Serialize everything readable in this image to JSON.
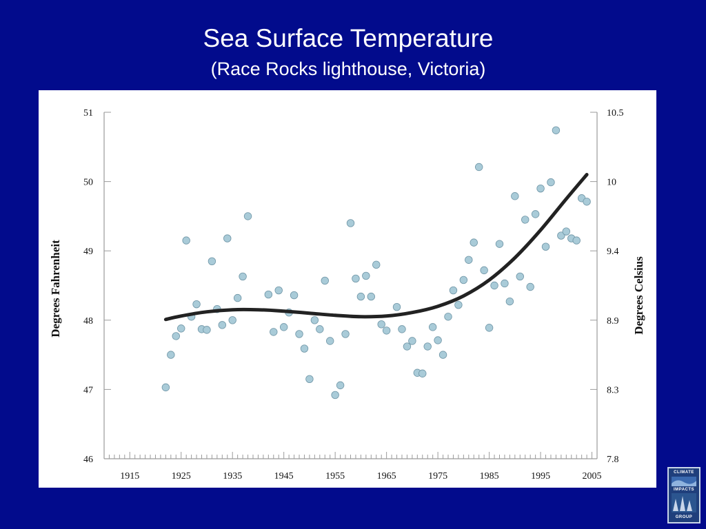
{
  "slide": {
    "title": "Sea Surface Temperature",
    "subtitle": "(Race Rocks lighthouse, Victoria)",
    "background": "#020b8c"
  },
  "logo": {
    "line1": "CLIMATE",
    "line2": "IMPACTS",
    "line3": "GROUP"
  },
  "chart_data": {
    "type": "scatter",
    "title": "Sea Surface Temperature",
    "subtitle": "(Race Rocks lighthouse, Victoria)",
    "ylabel": "Degrees Fahrenheit",
    "y2label": "Degrees Celsius",
    "xlim": [
      1910,
      2006
    ],
    "ylim": [
      46,
      51
    ],
    "x_ticks": [
      1915,
      1925,
      1935,
      1945,
      1955,
      1965,
      1975,
      1985,
      1995,
      2005
    ],
    "y_ticks": [
      46,
      47,
      48,
      49,
      50,
      51
    ],
    "y2_ticks": [
      {
        "label": "7.8",
        "value_f": 46.0
      },
      {
        "label": "8.3",
        "value_f": 47.0
      },
      {
        "label": "8.9",
        "value_f": 48.0
      },
      {
        "label": "9.4",
        "value_f": 49.0
      },
      {
        "label": "10",
        "value_f": 50.0
      },
      {
        "label": "10.5",
        "value_f": 51.0
      }
    ],
    "grid": false,
    "legend": "none",
    "point_color": "#a9cbd8",
    "point_stroke": "#6f95a6",
    "trend_color": "#222222",
    "series": [
      {
        "x": [
          1922,
          1923,
          1924,
          1925,
          1926,
          1927,
          1928,
          1929,
          1930,
          1931,
          1932,
          1933,
          1934,
          1935,
          1936,
          1937,
          1938,
          1942,
          1943,
          1944,
          1945,
          1946,
          1947,
          1948,
          1949,
          1950,
          1951,
          1952,
          1953,
          1954,
          1955,
          1956,
          1957,
          1958,
          1959,
          1960,
          1961,
          1962,
          1963,
          1964,
          1965,
          1967,
          1968,
          1969,
          1970,
          1971,
          1972,
          1973,
          1974,
          1975,
          1976,
          1977,
          1978,
          1979,
          1980,
          1981,
          1982,
          1983,
          1984,
          1985,
          1986,
          1987,
          1988,
          1989,
          1990,
          1991,
          1992,
          1993,
          1994,
          1995,
          1996,
          1997,
          1998,
          1999,
          2000,
          2001,
          2002,
          2003,
          2004
        ],
        "y": [
          47.03,
          47.5,
          47.77,
          47.88,
          49.15,
          48.05,
          48.23,
          47.87,
          47.86,
          48.85,
          48.16,
          47.93,
          49.18,
          48.0,
          48.32,
          48.63,
          49.5,
          48.37,
          47.83,
          48.43,
          47.9,
          48.11,
          48.36,
          47.8,
          47.59,
          47.15,
          48.0,
          47.87,
          48.57,
          47.7,
          46.92,
          47.06,
          47.8,
          49.4,
          48.6,
          48.34,
          48.64,
          48.34,
          48.8,
          47.94,
          47.85,
          48.19,
          47.87,
          47.62,
          47.7,
          47.24,
          47.23,
          47.62,
          47.9,
          47.71,
          47.5,
          48.05,
          48.43,
          48.22,
          48.58,
          48.87,
          49.12,
          50.21,
          48.72,
          47.89,
          48.5,
          49.1,
          48.53,
          48.27,
          49.79,
          48.63,
          49.45,
          48.48,
          49.53,
          49.9,
          49.06,
          49.99,
          50.74,
          49.22,
          49.28,
          49.18,
          49.15,
          49.76,
          49.71
        ]
      }
    ],
    "trend": {
      "x": [
        1922,
        1925,
        1930,
        1935,
        1940,
        1945,
        1950,
        1955,
        1960,
        1965,
        1970,
        1975,
        1980,
        1985,
        1990,
        1995,
        2000,
        2004
      ],
      "y": [
        48.01,
        48.06,
        48.12,
        48.15,
        48.15,
        48.13,
        48.1,
        48.07,
        48.05,
        48.06,
        48.11,
        48.2,
        48.35,
        48.58,
        48.9,
        49.3,
        49.75,
        50.1
      ]
    }
  }
}
